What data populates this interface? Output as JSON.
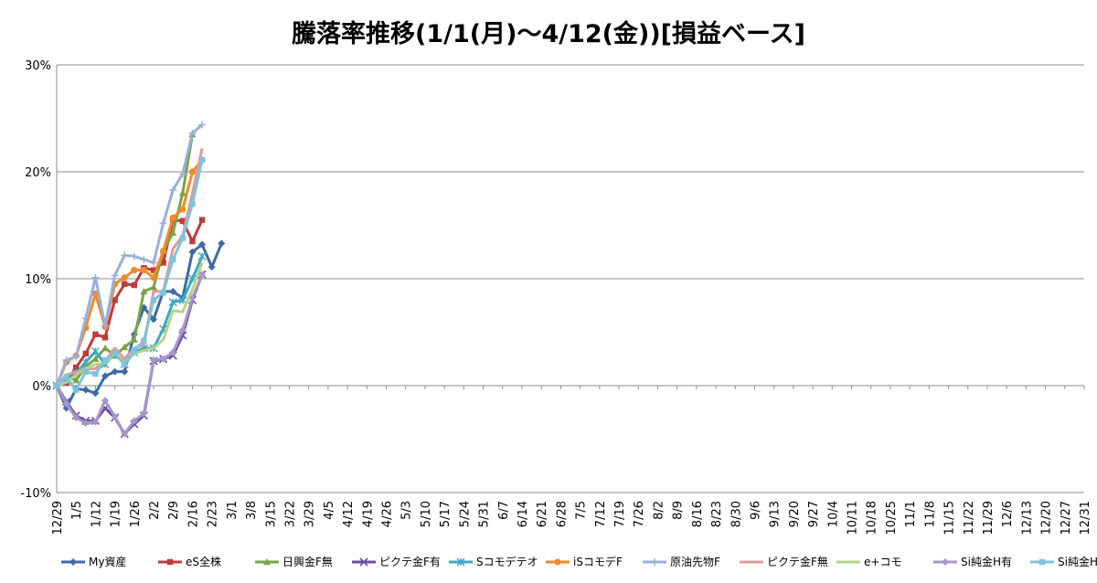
{
  "chart_data": {
    "type": "line",
    "title": "騰落率推移(1/1(月)～4/12(金))[損益ベース]",
    "xlabel": "",
    "ylabel": "",
    "ylim": [
      -0.1,
      0.3
    ],
    "yticks": [
      "-10%",
      "0%",
      "10%",
      "20%",
      "30%"
    ],
    "grid": "horizontal",
    "legend_position": "bottom",
    "x": [
      "12/29",
      "1/5",
      "1/12",
      "1/19",
      "1/26",
      "2/2",
      "2/9",
      "2/16",
      "2/23",
      "3/1",
      "3/8",
      "3/15",
      "3/22",
      "3/29",
      "4/5",
      "4/12",
      "4/19",
      "4/26",
      "5/3",
      "5/10",
      "5/17",
      "5/24",
      "5/31",
      "6/7",
      "6/14",
      "6/21",
      "6/28",
      "7/5",
      "7/12",
      "7/19",
      "7/26",
      "8/2",
      "8/9",
      "8/16",
      "8/23",
      "8/30",
      "9/6",
      "9/13",
      "9/20",
      "9/27",
      "10/4",
      "10/11",
      "10/18",
      "10/25",
      "11/1",
      "11/8",
      "11/15",
      "11/22",
      "11/29",
      "12/6",
      "12/13",
      "12/20",
      "12/27",
      "12/31"
    ],
    "series": [
      {
        "name": "My資産",
        "color": "#3c6ba5",
        "marker": "diamond",
        "points": [
          [
            0,
            0
          ],
          [
            0.5,
            -0.021
          ],
          [
            1,
            -0.003
          ],
          [
            1.5,
            -0.004
          ],
          [
            2,
            -0.007
          ],
          [
            2.5,
            0.009
          ],
          [
            3,
            0.013
          ],
          [
            3.5,
            0.013
          ],
          [
            4,
            0.048
          ],
          [
            4.5,
            0.073
          ],
          [
            5,
            0.062
          ],
          [
            5.5,
            0.088
          ],
          [
            6,
            0.088
          ],
          [
            6.5,
            0.082
          ],
          [
            7,
            0.125
          ],
          [
            7.5,
            0.132
          ],
          [
            8,
            0.111
          ],
          [
            8.5,
            0.133
          ]
        ]
      },
      {
        "name": "eS全株",
        "color": "#be3b3b",
        "marker": "square",
        "points": [
          [
            0,
            0
          ],
          [
            0.5,
            0.003
          ],
          [
            1,
            0.017
          ],
          [
            1.5,
            0.03
          ],
          [
            2,
            0.048
          ],
          [
            2.5,
            0.045
          ],
          [
            3,
            0.08
          ],
          [
            3.5,
            0.095
          ],
          [
            4,
            0.094
          ],
          [
            4.5,
            0.11
          ],
          [
            5,
            0.108
          ],
          [
            5.5,
            0.115
          ],
          [
            6,
            0.155
          ],
          [
            6.5,
            0.154
          ],
          [
            7,
            0.135
          ],
          [
            7.5,
            0.155
          ]
        ]
      },
      {
        "name": "日興金F無",
        "color": "#7ba346",
        "marker": "triangle",
        "points": [
          [
            0,
            0
          ],
          [
            0.5,
            0.008
          ],
          [
            1,
            0.005
          ],
          [
            1.5,
            0.018
          ],
          [
            2,
            0.025
          ],
          [
            2.5,
            0.035
          ],
          [
            3,
            0.028
          ],
          [
            3.5,
            0.036
          ],
          [
            4,
            0.043
          ],
          [
            4.5,
            0.088
          ],
          [
            5,
            0.092
          ],
          [
            5.5,
            0.126
          ],
          [
            6,
            0.143
          ],
          [
            6.5,
            0.18
          ],
          [
            7,
            0.235
          ]
        ]
      },
      {
        "name": "ピクテ金F有",
        "color": "#6c4fa0",
        "marker": "x",
        "points": [
          [
            0,
            0
          ],
          [
            0.5,
            -0.015
          ],
          [
            1,
            -0.028
          ],
          [
            1.5,
            -0.033
          ],
          [
            2,
            -0.033
          ],
          [
            2.5,
            -0.021
          ],
          [
            3,
            -0.03
          ],
          [
            3.5,
            -0.045
          ],
          [
            4,
            -0.036
          ],
          [
            4.5,
            -0.028
          ],
          [
            5,
            0.023
          ],
          [
            5.5,
            0.025
          ],
          [
            6,
            0.028
          ],
          [
            6.5,
            0.047
          ],
          [
            7,
            0.08
          ],
          [
            7.5,
            0.104
          ]
        ]
      },
      {
        "name": "Sコモデテオ",
        "color": "#3aa9c4",
        "marker": "star",
        "points": [
          [
            0,
            0
          ],
          [
            0.5,
            0.005
          ],
          [
            1,
            0.012
          ],
          [
            1.5,
            0.022
          ],
          [
            2,
            0.032
          ],
          [
            2.5,
            0.02
          ],
          [
            3,
            0.03
          ],
          [
            3.5,
            0.02
          ],
          [
            4,
            0.031
          ],
          [
            4.5,
            0.035
          ],
          [
            5,
            0.035
          ],
          [
            5.5,
            0.053
          ],
          [
            6,
            0.078
          ],
          [
            6.5,
            0.08
          ],
          [
            7,
            0.1
          ],
          [
            7.5,
            0.121
          ]
        ]
      },
      {
        "name": "iSコモデF",
        "color": "#f08a2c",
        "marker": "circle",
        "points": [
          [
            0,
            0
          ],
          [
            0.5,
            0.022
          ],
          [
            1,
            0.028
          ],
          [
            1.5,
            0.054
          ],
          [
            2,
            0.086
          ],
          [
            2.5,
            0.055
          ],
          [
            3,
            0.095
          ],
          [
            3.5,
            0.101
          ],
          [
            4,
            0.108
          ],
          [
            4.5,
            0.108
          ],
          [
            5,
            0.101
          ],
          [
            5.5,
            0.126
          ],
          [
            6,
            0.157
          ],
          [
            6.5,
            0.165
          ],
          [
            7,
            0.2
          ],
          [
            7.5,
            0.211
          ]
        ]
      },
      {
        "name": "原油先物F",
        "color": "#97b0dd",
        "marker": "plus",
        "points": [
          [
            0,
            0
          ],
          [
            0.5,
            0.024
          ],
          [
            1,
            0.027
          ],
          [
            1.5,
            0.063
          ],
          [
            2,
            0.101
          ],
          [
            2.5,
            0.056
          ],
          [
            3,
            0.103
          ],
          [
            3.5,
            0.122
          ],
          [
            4,
            0.121
          ],
          [
            4.5,
            0.118
          ],
          [
            5,
            0.115
          ],
          [
            5.5,
            0.152
          ],
          [
            6,
            0.183
          ],
          [
            6.5,
            0.198
          ],
          [
            7,
            0.236
          ],
          [
            7.5,
            0.244
          ]
        ]
      },
      {
        "name": "ピクテ金F無",
        "color": "#dc9c9a",
        "marker": "none",
        "points": [
          [
            0,
            0
          ],
          [
            0.5,
            0.01
          ],
          [
            1,
            0.013
          ],
          [
            1.5,
            0.015
          ],
          [
            2,
            0.016
          ],
          [
            2.5,
            0.023
          ],
          [
            3,
            0.035
          ],
          [
            3.5,
            0.025
          ],
          [
            4,
            0.035
          ],
          [
            4.5,
            0.038
          ],
          [
            5,
            0.088
          ],
          [
            5.5,
            0.088
          ],
          [
            6,
            0.128
          ],
          [
            6.5,
            0.14
          ],
          [
            7,
            0.18
          ],
          [
            7.5,
            0.222
          ]
        ]
      },
      {
        "name": "e+コモ",
        "color": "#b4d486",
        "marker": "none",
        "points": [
          [
            0,
            0
          ],
          [
            0.5,
            0.003
          ],
          [
            1,
            0.01
          ],
          [
            1.5,
            0.016
          ],
          [
            2,
            0.02
          ],
          [
            2.5,
            0.021
          ],
          [
            3,
            0.03
          ],
          [
            3.5,
            0.022
          ],
          [
            4,
            0.03
          ],
          [
            4.5,
            0.033
          ],
          [
            5,
            0.035
          ],
          [
            5.5,
            0.043
          ],
          [
            6,
            0.07
          ],
          [
            6.5,
            0.069
          ],
          [
            7,
            0.09
          ],
          [
            7.5,
            0.115
          ]
        ]
      },
      {
        "name": "Si純金H有",
        "color": "#a996c9",
        "marker": "diamond",
        "points": [
          [
            0,
            0
          ],
          [
            0.5,
            -0.017
          ],
          [
            1,
            -0.03
          ],
          [
            1.5,
            -0.035
          ],
          [
            2,
            -0.034
          ],
          [
            2.5,
            -0.014
          ],
          [
            3,
            -0.029
          ],
          [
            3.5,
            -0.045
          ],
          [
            4,
            -0.033
          ],
          [
            4.5,
            -0.026
          ],
          [
            5,
            0.024
          ],
          [
            5.5,
            0.025
          ],
          [
            6,
            0.031
          ],
          [
            6.5,
            0.052
          ],
          [
            7,
            0.082
          ],
          [
            7.5,
            0.104
          ]
        ]
      },
      {
        "name": "Si純金H無",
        "color": "#7fc3db",
        "marker": "square",
        "points": [
          [
            0,
            0
          ],
          [
            0.5,
            0.008
          ],
          [
            1,
            -0.004
          ],
          [
            1.5,
            0.013
          ],
          [
            2,
            0.011
          ],
          [
            2.5,
            0.024
          ],
          [
            3,
            0.03
          ],
          [
            3.5,
            0.02
          ],
          [
            4,
            0.033
          ],
          [
            4.5,
            0.042
          ],
          [
            5,
            0.08
          ],
          [
            5.5,
            0.087
          ],
          [
            6,
            0.118
          ],
          [
            6.5,
            0.138
          ],
          [
            7,
            0.17
          ],
          [
            7.5,
            0.211
          ]
        ]
      }
    ]
  }
}
